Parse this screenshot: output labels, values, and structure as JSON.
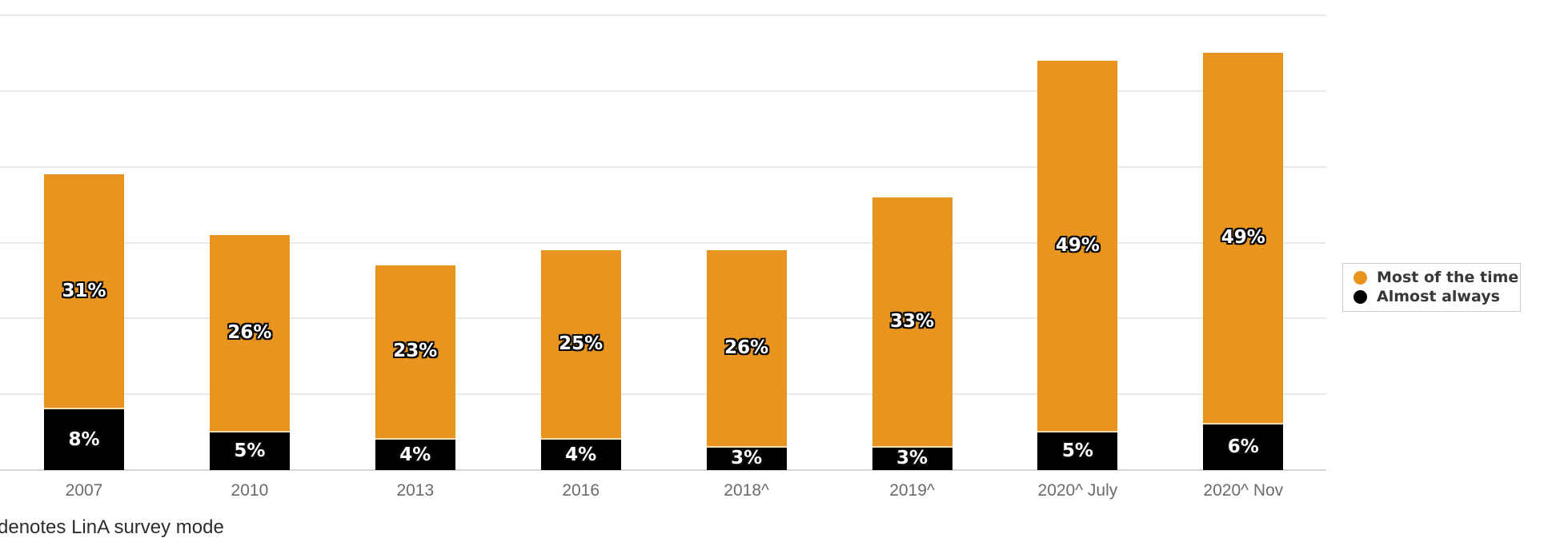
{
  "chart_data": {
    "type": "bar",
    "stacked": true,
    "categories": [
      "2007",
      "2010",
      "2013",
      "2016",
      "2018^",
      "2019^",
      "2020^ July",
      "2020^ Nov"
    ],
    "series": [
      {
        "name": "Almost always",
        "color": "#000000",
        "values": [
          8,
          5,
          4,
          4,
          3,
          3,
          5,
          6
        ]
      },
      {
        "name": "Most of the time",
        "color": "#E8941F",
        "values": [
          31,
          26,
          23,
          25,
          26,
          33,
          49,
          49
        ]
      }
    ],
    "value_suffix": "%",
    "ylim": [
      0,
      60
    ],
    "grid_step": 10,
    "grid": "on",
    "y_axis_labels_visible": false,
    "legend_position": "right",
    "legend": [
      {
        "label": "Most of the time",
        "color": "#E8941F"
      },
      {
        "label": "Almost always",
        "color": "#000000"
      }
    ],
    "footnote": "denotes LinA survey mode"
  },
  "colors": {
    "orange": "#E8941F",
    "black": "#000000",
    "grid_line": "#e9e9e9",
    "baseline": "#d3d6dd",
    "axis_text": "#6b6b6b",
    "footnote_text": "#2d2d2d",
    "legend_text": "#383838",
    "legend_border": "#cccccc"
  }
}
